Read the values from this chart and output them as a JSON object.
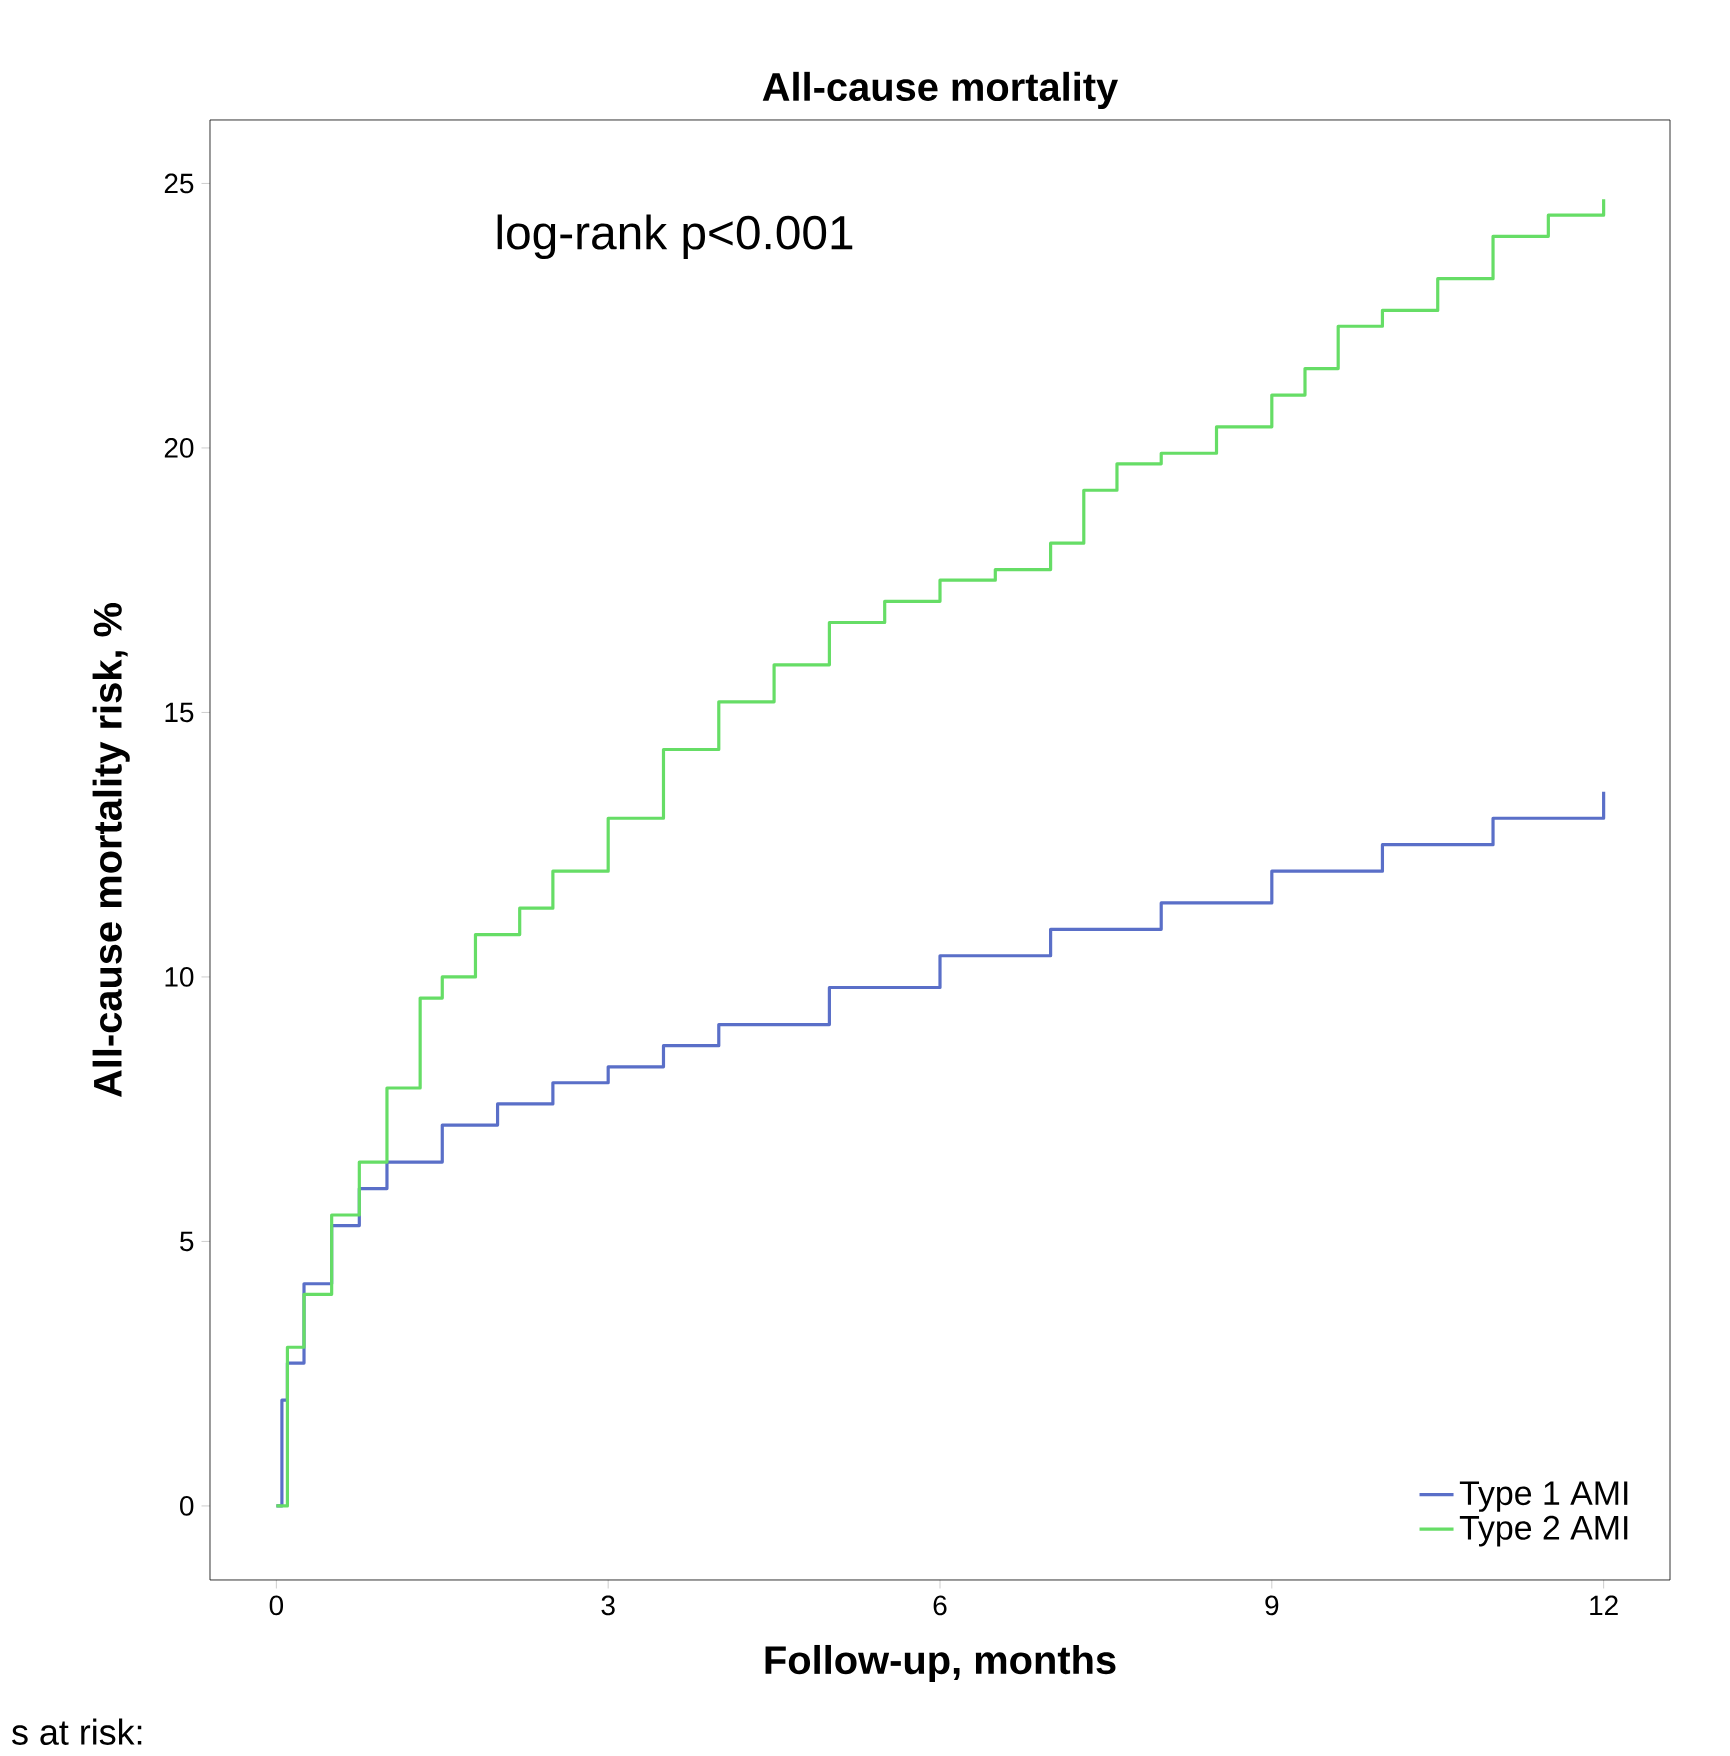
{
  "chart_data": {
    "type": "step",
    "title": "All-cause mortality",
    "xlabel": "Follow-up, months",
    "ylabel": "All-cause mortality risk, %",
    "annotations": [
      "log-rank p<0.001",
      "s at risk:"
    ],
    "xlim": [
      -0.6,
      12.6
    ],
    "ylim": [
      -1.4,
      26.2
    ],
    "xticks": [
      0,
      3,
      6,
      9,
      12
    ],
    "yticks": [
      0,
      5,
      10,
      15,
      20,
      25
    ],
    "legend": "bottom right",
    "marker": "none",
    "line_style": "solid",
    "grid": false,
    "series": [
      {
        "name": "Type 1 AMI",
        "color": "#5a6fc8",
        "x": [
          0,
          0.05,
          0.1,
          0.25,
          0.5,
          0.75,
          1,
          1.5,
          2,
          2.5,
          3,
          3.5,
          4,
          5,
          6,
          7,
          8,
          9,
          10,
          11,
          12
        ],
        "values": [
          0,
          2,
          2.7,
          4.2,
          5.3,
          6,
          6.5,
          7.2,
          7.6,
          8,
          8.3,
          8.7,
          9.1,
          9.8,
          10.4,
          10.9,
          11.4,
          12,
          12.5,
          13,
          13.5
        ]
      },
      {
        "name": "Type 2 AMI",
        "color": "#66dd66",
        "x": [
          0,
          0.1,
          0.25,
          0.5,
          0.75,
          1,
          1.3,
          1.5,
          1.8,
          2.2,
          2.5,
          3,
          3.5,
          4,
          4.5,
          5,
          5.5,
          6,
          6.5,
          7,
          7.3,
          7.6,
          8,
          8.5,
          9,
          9.3,
          9.6,
          10,
          10.5,
          11,
          11.5,
          12
        ],
        "values": [
          0,
          3,
          4,
          5.5,
          6.5,
          7.9,
          9.6,
          10,
          10.8,
          11.3,
          12,
          13,
          14.3,
          15.2,
          15.9,
          16.7,
          17.1,
          17.5,
          17.7,
          18.2,
          19.2,
          19.7,
          19.9,
          20.4,
          21,
          21.5,
          22.3,
          22.6,
          23.2,
          24,
          24.4,
          24.7
        ]
      }
    ]
  }
}
